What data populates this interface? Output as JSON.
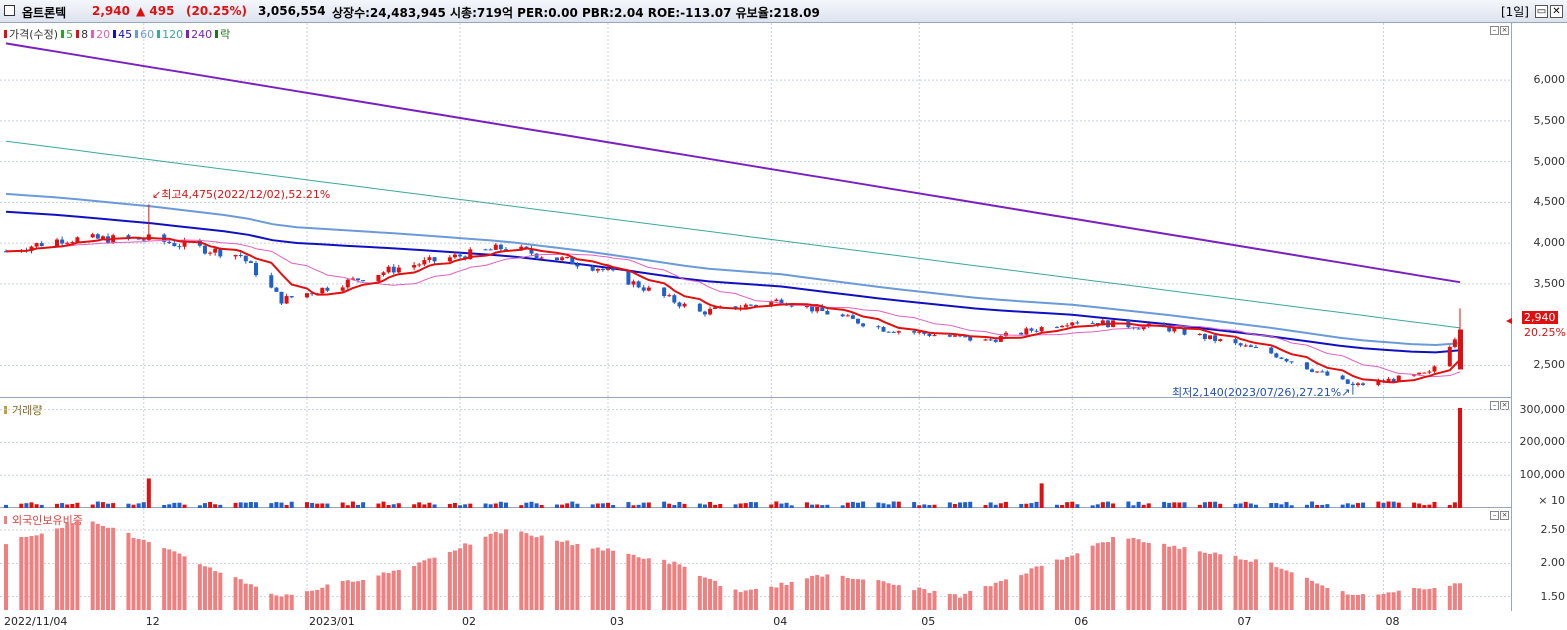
{
  "titlebar": {
    "stock_name": "옵트론텍",
    "price": "2,940",
    "change": "▲ 495",
    "change_pct": "(20.25%)",
    "volume": "3,056,554",
    "info": "상장수:24,483,945 시총:719억 PER:0.00 PBR:2.04 ROE:-113.07 유보율:218.09",
    "period": "[1일]"
  },
  "price_panel": {
    "legend": [
      {
        "label": "가격(수정)",
        "color": "#e01010"
      },
      {
        "label": "5",
        "color": "#2ea02e"
      },
      {
        "label": "8",
        "color": "#e01010"
      },
      {
        "label": "20",
        "color": "#e060c0"
      },
      {
        "label": "45",
        "color": "#1010c0"
      },
      {
        "label": "60",
        "color": "#6a9ad8"
      },
      {
        "label": "120",
        "color": "#3aa89a"
      },
      {
        "label": "240",
        "color": "#7a20c0"
      },
      {
        "label": "락",
        "color": "#207020"
      }
    ],
    "y_ticks": [
      "6,000",
      "5,500",
      "5,000",
      "4,500",
      "4,000",
      "3,500",
      "2,940",
      "2,500"
    ],
    "high_annotation": "최고4,475(2022/12/02),52.21%",
    "low_annotation": "최저2,140(2023/07/26),27.21%",
    "current_price": "2,940",
    "current_pct": "20.25%"
  },
  "volume_panel": {
    "legend": "거래량",
    "y_ticks": [
      "300,000",
      "200,000",
      "100,000",
      "× 10"
    ]
  },
  "foreign_panel": {
    "legend": "외국인보유비중",
    "y_ticks": [
      "2.50",
      "2.00",
      "1.50"
    ]
  },
  "x_axis": [
    "2022/11/04",
    "12",
    "2023/01",
    "02",
    "03",
    "04",
    "05",
    "06",
    "07",
    "08"
  ],
  "colors": {
    "up": "#e01010",
    "down": "#2060c8",
    "grid": "#c8d0dc",
    "foreign_bar": "#f08080"
  },
  "chart_data": {
    "type": "candlestick",
    "x_range": [
      "2022/11/04",
      "2023/08"
    ],
    "ylim": [
      2100,
      6700
    ],
    "price_path": [
      {
        "date": "2022/11/04",
        "close": 3900
      },
      {
        "date": "2022/11/15",
        "close": 4050
      },
      {
        "date": "2022/12/02",
        "close": 4050,
        "high": 4475
      },
      {
        "date": "2022/12/20",
        "close": 3850
      },
      {
        "date": "2022/12/28",
        "close": 3300,
        "low": 3100
      },
      {
        "date": "2023/01/20",
        "close": 3700
      },
      {
        "date": "2023/02/10",
        "close": 3950
      },
      {
        "date": "2023/02/28",
        "close": 3700
      },
      {
        "date": "2023/03/20",
        "close": 3150
      },
      {
        "date": "2023/04/05",
        "close": 3300
      },
      {
        "date": "2023/04/25",
        "close": 2950
      },
      {
        "date": "2023/05/15",
        "close": 2800
      },
      {
        "date": "2023/06/01",
        "close": 3050
      },
      {
        "date": "2023/06/20",
        "close": 2950
      },
      {
        "date": "2023/07/10",
        "close": 2650
      },
      {
        "date": "2023/07/26",
        "close": 2250,
        "low": 2140
      },
      {
        "date": "2023/08/10",
        "close": 2400
      },
      {
        "date": "2023/08/16",
        "close": 2940
      }
    ],
    "ma240": [
      {
        "date": "2022/11/04",
        "value": 6450
      },
      {
        "date": "2023/08/16",
        "value": 3520
      }
    ],
    "ma120": [
      {
        "date": "2022/11/04",
        "value": 5250
      },
      {
        "date": "2023/08/16",
        "value": 2960
      }
    ],
    "ma60": [
      {
        "date": "2022/11/04",
        "value": 4700
      },
      {
        "date": "2023/08/16",
        "value": 2750
      }
    ],
    "ma45": [
      {
        "date": "2022/11/04",
        "value": 4450
      },
      {
        "date": "2023/08/16",
        "value": 2650
      }
    ],
    "volume_peaks": [
      {
        "date": "2022/12/02",
        "value": 90000
      },
      {
        "date": "2023/05/26",
        "value": 75000
      },
      {
        "date": "2023/08/16",
        "value": 305000
      }
    ],
    "foreign_ratio": [
      {
        "date": "2022/11/04",
        "value": 2.3
      },
      {
        "date": "2022/11/20",
        "value": 2.68
      },
      {
        "date": "2022/12/28",
        "value": 1.5
      },
      {
        "date": "2023/01/20",
        "value": 1.9
      },
      {
        "date": "2023/02/10",
        "value": 2.5
      },
      {
        "date": "2023/03/15",
        "value": 2.0
      },
      {
        "date": "2023/03/28",
        "value": 1.55
      },
      {
        "date": "2023/04/15",
        "value": 1.85
      },
      {
        "date": "2023/05/10",
        "value": 1.5
      },
      {
        "date": "2023/06/10",
        "value": 2.4
      },
      {
        "date": "2023/07/10",
        "value": 2.0
      },
      {
        "date": "2023/07/26",
        "value": 1.5
      },
      {
        "date": "2023/08/16",
        "value": 1.7
      }
    ]
  }
}
